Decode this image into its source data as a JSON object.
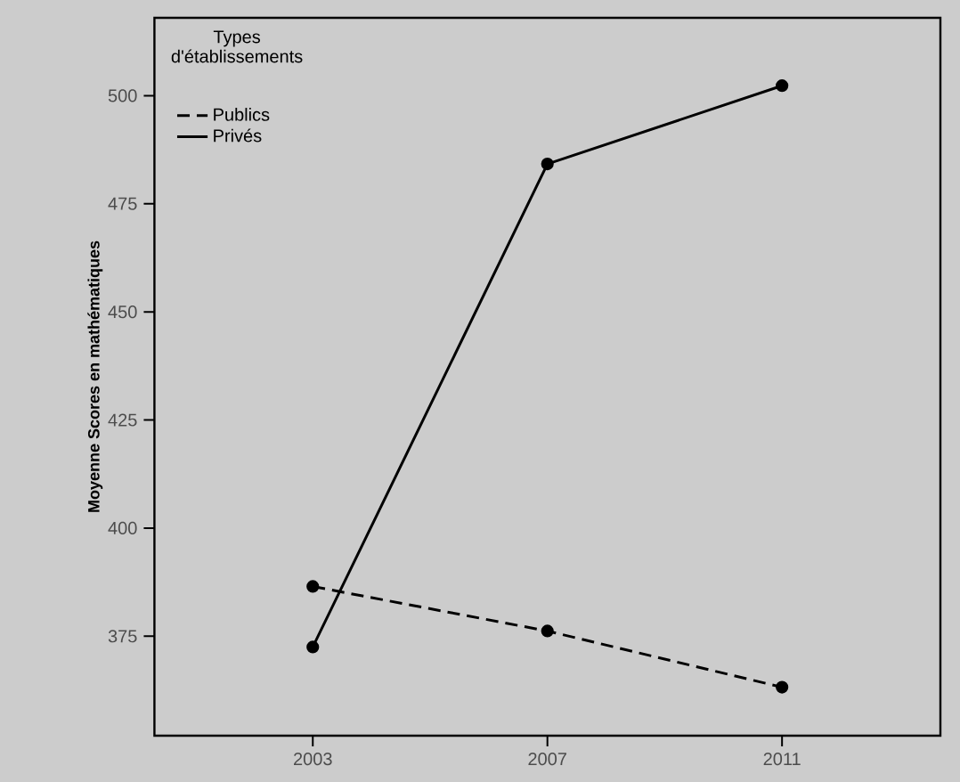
{
  "chart_data": {
    "type": "line",
    "ylabel": "Moyenne Scores en mathématiques",
    "legend_title": "Types d'établissements",
    "x": [
      2003,
      2007,
      2011
    ],
    "xlim": [
      2000.3,
      2013.7
    ],
    "xticks": [
      2003,
      2007,
      2011
    ],
    "ylim": [
      352,
      518
    ],
    "yticks": [
      375,
      400,
      425,
      450,
      475,
      500
    ],
    "legend": "top left",
    "marker": "circle",
    "grid": false,
    "series": [
      {
        "name": "Publics",
        "color": "#000000",
        "line_style": "dashed",
        "values": [
          386.5,
          376.2,
          363.2
        ]
      },
      {
        "name": "Privés",
        "color": "#000000",
        "line_style": "solid",
        "values": [
          372.5,
          484.2,
          502.3
        ]
      }
    ]
  }
}
